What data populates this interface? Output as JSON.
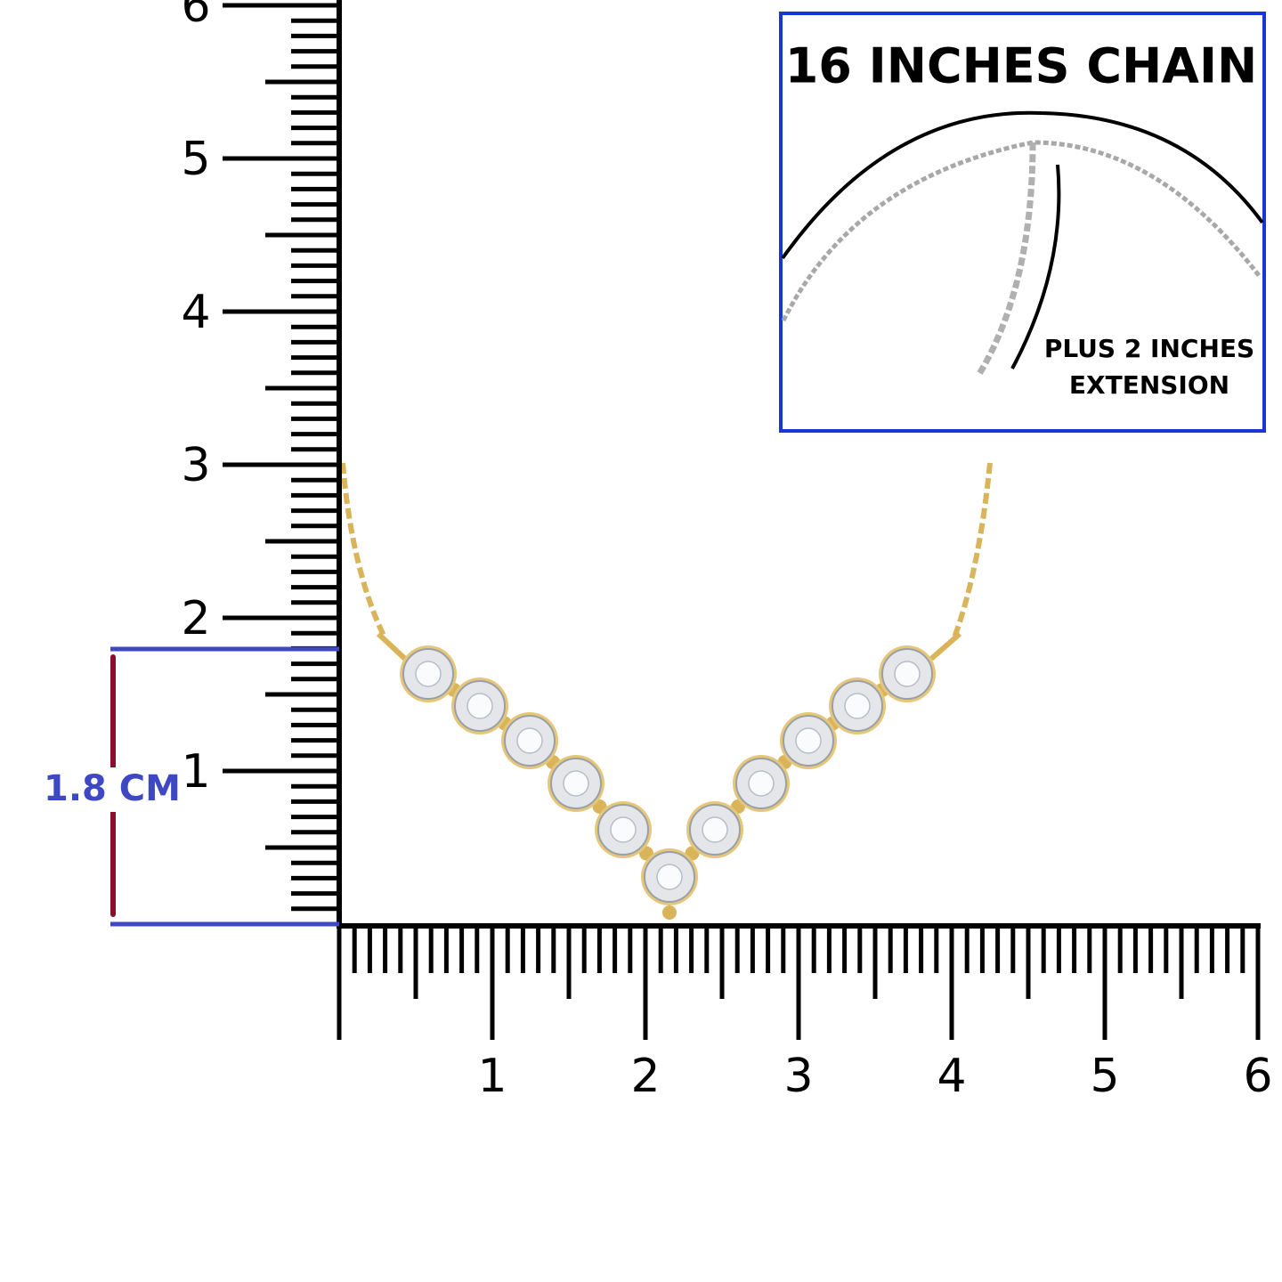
{
  "vertical_ruler": {
    "labels": [
      1,
      2,
      3,
      4,
      5,
      6
    ]
  },
  "horizontal_ruler": {
    "labels": [
      1,
      2,
      3,
      4,
      5,
      6
    ]
  },
  "measurement": {
    "label": "1.8 CM"
  },
  "inset": {
    "title": "16 INCHES CHAIN",
    "note_line1": "PLUS 2 INCHES",
    "note_line2": "EXTENSION"
  }
}
